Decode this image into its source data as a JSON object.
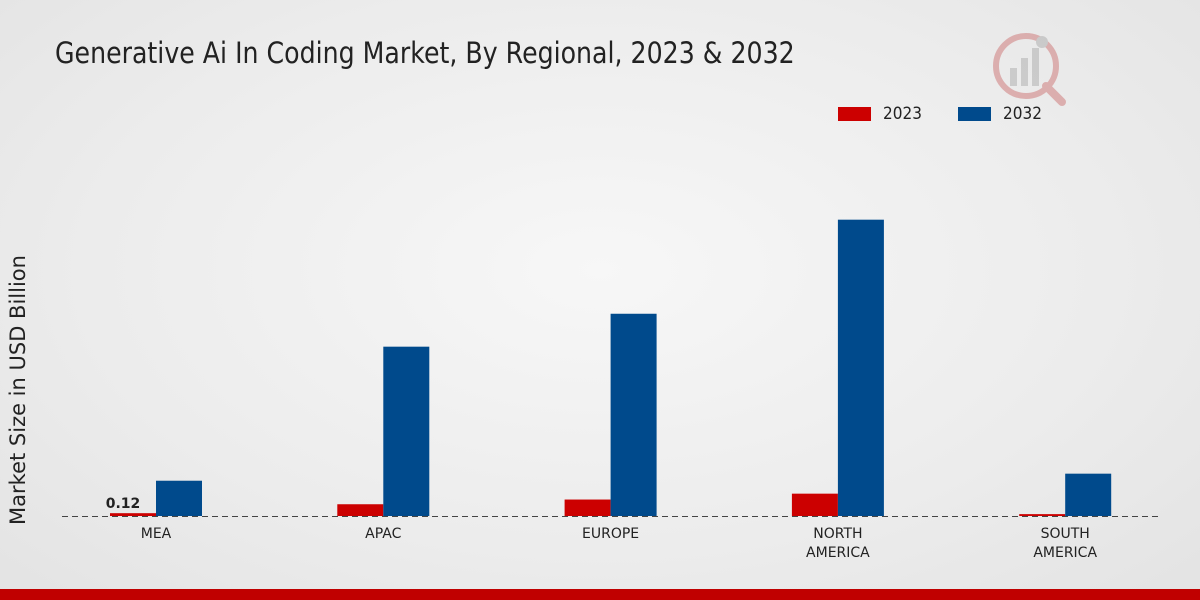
{
  "chart_data": {
    "type": "bar",
    "title": "Generative Ai In Coding Market, By Regional, 2023 & 2032",
    "xlabel": "",
    "ylabel": "Market Size in USD Billion",
    "categories": [
      "MEA",
      "APAC",
      "EUROPE",
      "NORTH AMERICA",
      "SOUTH AMERICA"
    ],
    "category_lines": [
      [
        "MEA"
      ],
      [
        "APAC"
      ],
      [
        "EUROPE"
      ],
      [
        "NORTH",
        "AMERICA"
      ],
      [
        "SOUTH",
        "AMERICA"
      ]
    ],
    "series": [
      {
        "name": "2023",
        "color": "#cc0000",
        "values": [
          0.12,
          0.5,
          0.7,
          0.95,
          0.08
        ]
      },
      {
        "name": "2032",
        "color": "#004a8c",
        "values": [
          1.5,
          7.2,
          8.6,
          12.6,
          1.8
        ]
      }
    ],
    "data_labels": [
      {
        "series": 0,
        "index": 0,
        "text": "0.12"
      }
    ],
    "ylim": [
      0,
      14.5
    ],
    "legend_position": "top-right"
  },
  "colors": {
    "accent_bar": "#c00000"
  }
}
